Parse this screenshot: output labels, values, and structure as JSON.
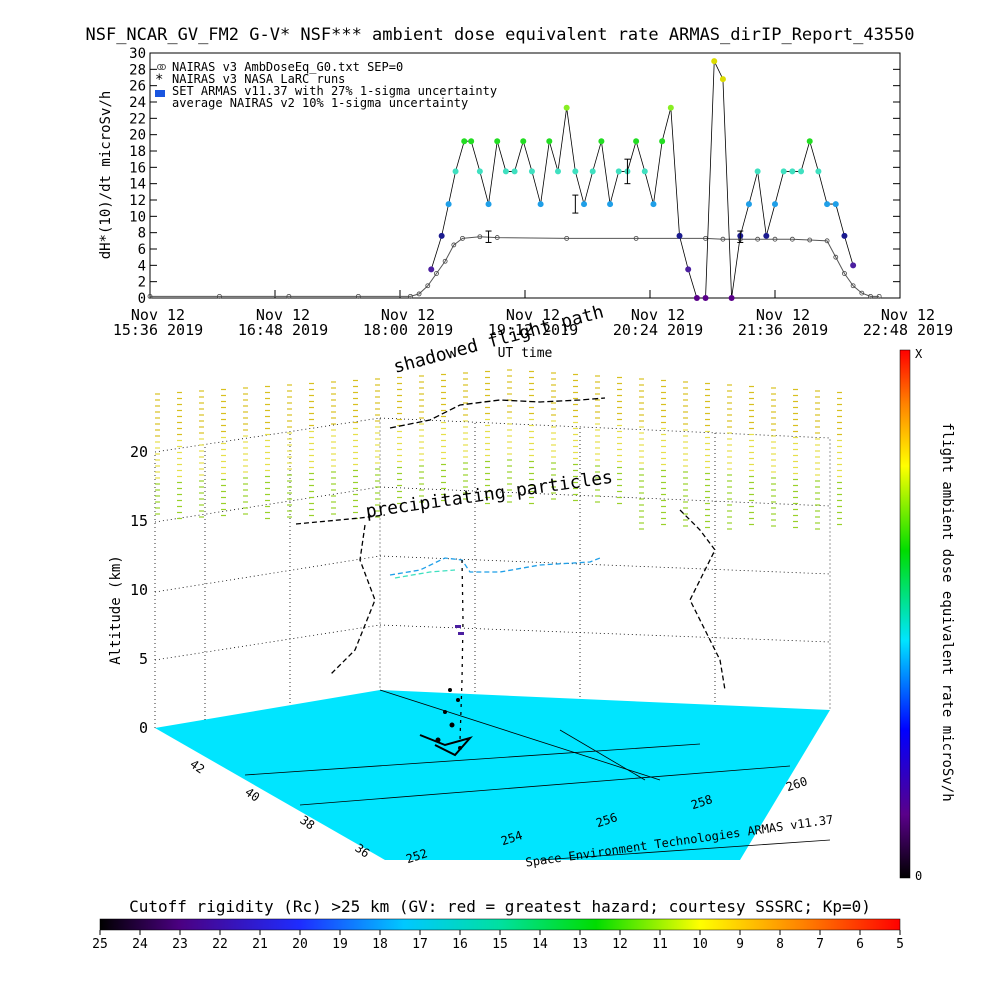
{
  "chart_data": [
    {
      "type": "scatter",
      "title": "NSF_NCAR_GV_FM2 G-V* NSF*** ambient dose equivalent rate ARMAS_dirIP_Report_43550",
      "ylabel": "dH*(10)/dt microSv/h",
      "xlabel": "UT time",
      "ylim": [
        0,
        30
      ],
      "yticks": [
        "0",
        "2",
        "4",
        "6",
        "8",
        "10",
        "12",
        "14",
        "16",
        "18",
        "20",
        "22",
        "24",
        "26",
        "28",
        "30"
      ],
      "xticks": [
        {
          "line1": "Nov 12",
          "line2": "15:36 2019"
        },
        {
          "line1": "Nov 12",
          "line2": "16:48 2019"
        },
        {
          "line1": "Nov 12",
          "line2": "18:00 2019"
        },
        {
          "line1": "Nov 12",
          "line2": "19:12 2019"
        },
        {
          "line1": "Nov 12",
          "line2": "20:24 2019"
        },
        {
          "line1": "Nov 12",
          "line2": "21:36 2019"
        },
        {
          "line1": "Nov 12",
          "line2": "22:48 2019"
        }
      ],
      "legend": [
        "NAIRAS v3 AmbDoseEq_G0.txt SEP=0",
        "NAIRAS v3 NASA LaRC runs",
        "SET ARMAS v11.37 with 27% 1-sigma uncertainty",
        "average NAIRAS v2 10% 1-sigma uncertainty"
      ],
      "legend_position": "top-left",
      "x_unit": "minutes after 15:36",
      "xlim": [
        0,
        432
      ],
      "series": [
        {
          "name": "NAIRAS v3 AmbDoseEq_G0.txt SEP=0",
          "x": [
            0,
            40,
            80,
            120,
            150,
            155,
            160,
            165,
            170,
            175,
            180,
            190,
            200,
            240,
            280,
            320,
            330,
            340,
            350,
            360,
            370,
            380,
            390,
            395,
            400,
            405,
            410,
            415,
            420
          ],
          "y": [
            0.2,
            0.2,
            0.2,
            0.2,
            0.2,
            0.5,
            1.5,
            3.0,
            4.5,
            6.5,
            7.3,
            7.5,
            7.4,
            7.3,
            7.3,
            7.3,
            7.2,
            7.2,
            7.2,
            7.2,
            7.2,
            7.1,
            7.0,
            5.0,
            3.0,
            1.5,
            0.6,
            0.2,
            0.2
          ]
        },
        {
          "name": "SET ARMAS v11.37 with 27% 1-sigma uncertainty",
          "x": [
            162,
            168,
            172,
            176,
            181,
            185,
            190,
            195,
            200,
            205,
            210,
            215,
            220,
            225,
            230,
            235,
            240,
            245,
            250,
            255,
            260,
            265,
            270,
            275,
            280,
            285,
            290,
            295,
            300,
            305,
            310,
            315,
            320,
            325,
            330,
            335,
            340,
            345,
            350,
            355,
            360,
            365,
            370,
            375,
            380,
            385,
            390,
            395,
            400,
            405
          ],
          "y": [
            3.5,
            7.6,
            11.5,
            15.5,
            19.2,
            19.2,
            15.5,
            11.5,
            19.2,
            15.5,
            15.5,
            19.2,
            15.5,
            11.5,
            19.2,
            15.5,
            23.3,
            15.5,
            11.5,
            15.5,
            19.2,
            11.5,
            15.5,
            15.5,
            19.2,
            15.5,
            11.5,
            19.2,
            23.3,
            7.6,
            3.5,
            0.0,
            0.0,
            29.0,
            26.8,
            0.0,
            7.6,
            11.5,
            15.5,
            7.6,
            11.5,
            15.5,
            15.5,
            15.5,
            19.2,
            15.5,
            11.5,
            11.5,
            7.6,
            4.0
          ]
        },
        {
          "name": "average NAIRAS v2 10% 1-sigma uncertainty",
          "x": [
            195,
            245,
            275,
            340
          ],
          "y": [
            7.5,
            11.5,
            15.5,
            7.5
          ],
          "err": [
            0.7,
            1.1,
            1.5,
            0.7
          ]
        }
      ]
    },
    {
      "type": "scatter",
      "subtitle": "shadowed flight path",
      "annotation": "precipitating particles",
      "zlabel": "Altitude (km)",
      "zticks": [
        "0",
        "5",
        "10",
        "15",
        "20"
      ],
      "latticks": [
        "42",
        "40",
        "38",
        "36"
      ],
      "lonticks": [
        "252",
        "254",
        "256",
        "258",
        "260"
      ],
      "credit": "Space Environment Technologies ARMAS v11.37",
      "colorbar_label": "flight ambient dose equivalent rate microSv/h",
      "colorbar_top": "X",
      "colorbar_bottom": "0"
    },
    {
      "type": "heatmap",
      "title": "Cutoff rigidity (Rc) >25 km (GV: red = greatest hazard; courtesy SSSRC; Kp=0)",
      "ticks": [
        "25",
        "24",
        "23",
        "22",
        "21",
        "20",
        "19",
        "18",
        "17",
        "16",
        "15",
        "14",
        "13",
        "12",
        "11",
        "10",
        "9",
        "8",
        "7",
        "6",
        "5"
      ]
    }
  ],
  "colors": {
    "ground": "#00e5ff",
    "accent_green": "#22dd22",
    "cyan": "#3fe0c0",
    "blue": "#1f9fe8",
    "navy": "#1b1b8f"
  }
}
